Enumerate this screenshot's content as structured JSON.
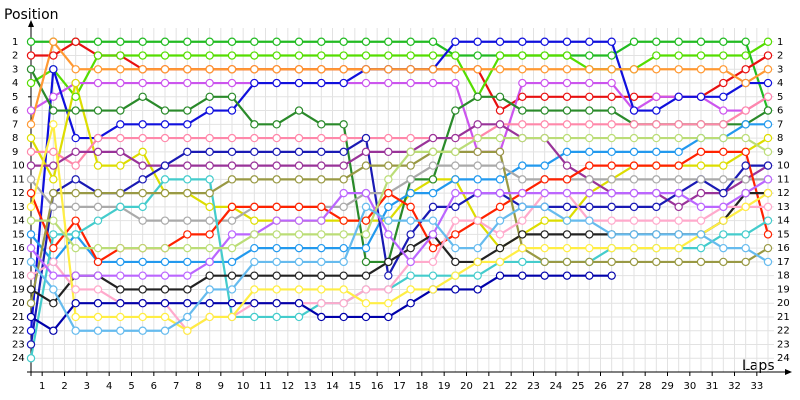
{
  "chart_data": {
    "type": "line",
    "ylabel": "Position",
    "xlabel": "Laps",
    "grid": true,
    "marker": "circle",
    "y_inverted": true,
    "x": [
      0,
      1,
      2,
      3,
      4,
      5,
      6,
      7,
      8,
      9,
      10,
      11,
      12,
      13,
      14,
      15,
      16,
      17,
      18,
      19,
      20,
      21,
      22,
      23,
      24,
      25,
      26,
      27,
      28,
      29,
      30,
      31,
      32,
      33
    ],
    "xlim": [
      0,
      33
    ],
    "ylim": [
      25,
      0
    ],
    "xticks": [
      {
        "value": 0.5,
        "label": "1"
      },
      {
        "value": 1.5,
        "label": "2"
      },
      {
        "value": 2.5,
        "label": "3"
      },
      {
        "value": 3.5,
        "label": "4"
      },
      {
        "value": 4.5,
        "label": "5"
      },
      {
        "value": 5.5,
        "label": "6"
      },
      {
        "value": 6.5,
        "label": "7"
      },
      {
        "value": 7.5,
        "label": "8"
      },
      {
        "value": 8.5,
        "label": "9"
      },
      {
        "value": 9.5,
        "label": "10"
      },
      {
        "value": 10.5,
        "label": "11"
      },
      {
        "value": 11.5,
        "label": "12"
      },
      {
        "value": 12.5,
        "label": "13"
      },
      {
        "value": 13.5,
        "label": "14"
      },
      {
        "value": 14.5,
        "label": "15"
      },
      {
        "value": 15.5,
        "label": "16"
      },
      {
        "value": 16.5,
        "label": "17"
      },
      {
        "value": 17.5,
        "label": "18"
      },
      {
        "value": 18.5,
        "label": "19"
      },
      {
        "value": 19.5,
        "label": "20"
      },
      {
        "value": 20.5,
        "label": "21"
      },
      {
        "value": 21.5,
        "label": "22"
      },
      {
        "value": 22.5,
        "label": "23"
      },
      {
        "value": 23.5,
        "label": "24"
      },
      {
        "value": 24.5,
        "label": "25"
      },
      {
        "value": 25.5,
        "label": "26"
      },
      {
        "value": 26.5,
        "label": "27"
      },
      {
        "value": 27.5,
        "label": "28"
      },
      {
        "value": 28.5,
        "label": "29"
      },
      {
        "value": 29.5,
        "label": "30"
      },
      {
        "value": 30.5,
        "label": "31"
      },
      {
        "value": 31.5,
        "label": "32"
      },
      {
        "value": 32.5,
        "label": "33"
      }
    ],
    "yticks": [
      1,
      2,
      3,
      4,
      5,
      6,
      7,
      8,
      9,
      10,
      11,
      12,
      13,
      14,
      15,
      16,
      17,
      18,
      19,
      20,
      21,
      22,
      23,
      24
    ],
    "series": [
      {
        "color": "#22bb22",
        "values": [
          1,
          1,
          1,
          1,
          1,
          1,
          1,
          1,
          1,
          1,
          1,
          1,
          1,
          1,
          1,
          1,
          1,
          1,
          1,
          2,
          2,
          2,
          2,
          2,
          2,
          2,
          2,
          1,
          1,
          1,
          1,
          1,
          1,
          6
        ]
      },
      {
        "color": "#e81010",
        "values": [
          2,
          2,
          1,
          2,
          2,
          3,
          3,
          3,
          3,
          3,
          3,
          3,
          3,
          3,
          3,
          3,
          3,
          3,
          3,
          3,
          3,
          6,
          5,
          5,
          5,
          5,
          5,
          5,
          5,
          5,
          5,
          4,
          3,
          2
        ]
      },
      {
        "color": "#55dd00",
        "values": [
          4,
          3,
          5,
          2,
          2,
          2,
          2,
          2,
          2,
          2,
          2,
          2,
          2,
          2,
          2,
          2,
          2,
          2,
          2,
          2,
          5,
          2,
          2,
          2,
          2,
          3,
          3,
          3,
          2,
          2,
          2,
          2,
          2,
          1
        ]
      },
      {
        "color": "#cc55ee",
        "values": [
          6,
          5,
          4,
          4,
          4,
          4,
          4,
          4,
          4,
          4,
          4,
          4,
          4,
          4,
          4,
          4,
          4,
          4,
          4,
          4,
          9,
          9,
          4,
          4,
          4,
          4,
          4,
          6,
          5,
          5,
          5,
          6,
          6,
          5
        ]
      },
      {
        "color": "#1010dd",
        "values": [
          22,
          3,
          8,
          8,
          7,
          7,
          7,
          7,
          6,
          6,
          4,
          4,
          4,
          4,
          4,
          3,
          3,
          3,
          3,
          1,
          1,
          1,
          1,
          1,
          1,
          1,
          1,
          6,
          6,
          5,
          5,
          5,
          4,
          4
        ]
      },
      {
        "color": "#dddd00",
        "values": [
          8,
          11,
          4,
          10,
          10,
          9,
          12,
          12,
          13,
          13,
          14,
          14,
          14,
          14,
          14,
          14,
          14,
          12,
          11,
          11,
          14,
          16,
          15,
          14,
          14,
          12,
          11,
          10,
          10,
          10,
          10,
          10,
          9,
          8
        ]
      },
      {
        "color": "#2a8a2a",
        "values": [
          3,
          6,
          6,
          6,
          6,
          5,
          6,
          6,
          5,
          5,
          7,
          7,
          6,
          7,
          7,
          17,
          17,
          11,
          11,
          6,
          5,
          5,
          6,
          6,
          6,
          6,
          6,
          7,
          7,
          7,
          7,
          7,
          7,
          6
        ]
      },
      {
        "color": "#ff88aa",
        "values": [
          9,
          9,
          10,
          8,
          8,
          8,
          8,
          8,
          8,
          8,
          8,
          8,
          8,
          8,
          8,
          8,
          8,
          8,
          8,
          8,
          8,
          7,
          7,
          7,
          7,
          7,
          7,
          7,
          7,
          7,
          7,
          7,
          6,
          5
        ]
      },
      {
        "color": "#2299ee",
        "values": [
          15,
          17,
          15,
          17,
          17,
          17,
          17,
          17,
          17,
          17,
          16,
          16,
          16,
          16,
          16,
          16,
          13,
          12,
          12,
          11,
          11,
          11,
          10,
          10,
          9,
          9,
          9,
          9,
          9,
          9,
          8,
          8,
          7,
          7
        ]
      },
      {
        "color": "#993399",
        "values": [
          10,
          10,
          9,
          9,
          9,
          10,
          10,
          10,
          10,
          10,
          10,
          10,
          10,
          10,
          10,
          9,
          9,
          9,
          8,
          8,
          7,
          7,
          8,
          8,
          10,
          11,
          12,
          12,
          12,
          13,
          12,
          12,
          11,
          10
        ]
      },
      {
        "color": "#1a1ab4",
        "values": [
          23,
          12,
          11,
          12,
          12,
          11,
          10,
          9,
          9,
          9,
          9,
          9,
          9,
          9,
          9,
          8,
          18,
          15,
          13,
          13,
          12,
          12,
          13,
          13,
          13,
          13,
          13,
          13,
          13,
          12,
          11,
          12,
          10,
          10
        ]
      },
      {
        "color": "#aaaaaa",
        "values": [
          11,
          13,
          13,
          13,
          13,
          14,
          14,
          14,
          14,
          14,
          13,
          13,
          13,
          13,
          13,
          12,
          12,
          11,
          10,
          10,
          10,
          10,
          11,
          11,
          11,
          11,
          11,
          11,
          11,
          11,
          11,
          11,
          11,
          11
        ]
      },
      {
        "color": "#ff2200",
        "values": [
          12,
          16,
          14,
          17,
          16,
          16,
          16,
          15,
          15,
          13,
          13,
          13,
          13,
          13,
          14,
          14,
          12,
          13,
          16,
          15,
          14,
          13,
          12,
          11,
          11,
          10,
          10,
          10,
          10,
          10,
          9,
          9,
          9,
          15
        ]
      },
      {
        "color": "#44cccc",
        "values": [
          24,
          15,
          15,
          14,
          13,
          13,
          11,
          11,
          11,
          21,
          21,
          21,
          21,
          20,
          20,
          19,
          19,
          18,
          18,
          18,
          18,
          17,
          17,
          17,
          17,
          17,
          16,
          16,
          16,
          16,
          16,
          15,
          15,
          14
        ]
      },
      {
        "color": "#222222",
        "values": [
          19,
          20,
          18,
          18,
          19,
          19,
          19,
          19,
          18,
          18,
          18,
          18,
          18,
          18,
          18,
          18,
          17,
          16,
          15,
          17,
          17,
          16,
          15,
          15,
          15,
          15,
          15,
          15,
          15,
          15,
          15,
          14,
          12,
          12
        ]
      },
      {
        "color": "#999944",
        "values": [
          20,
          12,
          12,
          12,
          12,
          12,
          12,
          12,
          12,
          11,
          11,
          11,
          11,
          11,
          11,
          10,
          10,
          10,
          9,
          9,
          9,
          9,
          16,
          17,
          17,
          17,
          17,
          17,
          17,
          17,
          17,
          17,
          17,
          16
        ]
      },
      {
        "color": "#ffaacc",
        "values": [
          18,
          17,
          19,
          19,
          20,
          20,
          20,
          22,
          21,
          21,
          20,
          20,
          20,
          20,
          20,
          19,
          19,
          17,
          17,
          14,
          14,
          15,
          14,
          12,
          12,
          14,
          14,
          14,
          14,
          14,
          14,
          13,
          13,
          13
        ]
      },
      {
        "color": "#bb66ff",
        "values": [
          16,
          18,
          18,
          18,
          18,
          18,
          18,
          18,
          17,
          15,
          15,
          14,
          14,
          14,
          12,
          12,
          15,
          17,
          15,
          12,
          12,
          12,
          12,
          12,
          12,
          12,
          12,
          12,
          12,
          12,
          13,
          13,
          12,
          11
        ]
      },
      {
        "color": "#0000aa",
        "values": [
          21,
          22,
          20,
          20,
          20,
          20,
          20,
          20,
          20,
          20,
          20,
          20,
          20,
          21,
          21,
          21,
          21,
          20,
          19,
          19,
          19,
          18,
          18,
          18,
          18,
          18,
          18,
          null,
          null,
          null,
          null,
          null,
          null,
          null
        ]
      },
      {
        "color": "#ffee44",
        "values": [
          13,
          7,
          21,
          21,
          21,
          21,
          21,
          22,
          21,
          21,
          19,
          19,
          19,
          19,
          19,
          20,
          20,
          19,
          19,
          18,
          17,
          17,
          16,
          16,
          16,
          16,
          16,
          16,
          16,
          16,
          15,
          14,
          13,
          12
        ]
      },
      {
        "color": "#bbdd77",
        "values": [
          14,
          14,
          16,
          16,
          16,
          16,
          16,
          16,
          16,
          16,
          15,
          15,
          15,
          15,
          15,
          15,
          11,
          9,
          9,
          9,
          8,
          8,
          8,
          8,
          8,
          8,
          8,
          8,
          8,
          8,
          8,
          8,
          8,
          9
        ]
      },
      {
        "color": "#66bbee",
        "values": [
          17,
          19,
          22,
          22,
          22,
          22,
          22,
          21,
          19,
          19,
          17,
          17,
          17,
          17,
          17,
          13,
          14,
          14,
          14,
          16,
          16,
          14,
          13,
          13,
          14,
          14,
          15,
          15,
          15,
          15,
          15,
          16,
          16,
          17
        ]
      },
      {
        "color": "#ff9933",
        "values": [
          7,
          1,
          3,
          3,
          3,
          3,
          3,
          3,
          3,
          3,
          3,
          3,
          3,
          3,
          3,
          3,
          3,
          3,
          3,
          3,
          3,
          3,
          3,
          3,
          3,
          3,
          3,
          3,
          3,
          3,
          3,
          3,
          4,
          3
        ]
      }
    ]
  }
}
